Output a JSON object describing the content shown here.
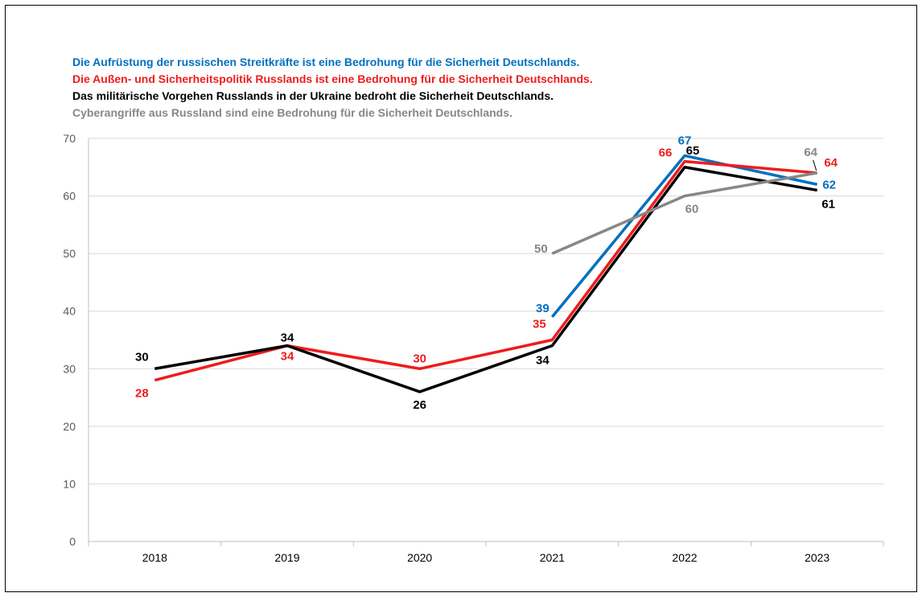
{
  "chart_data": {
    "type": "line",
    "categories": [
      "2018",
      "2019",
      "2020",
      "2021",
      "2022",
      "2023"
    ],
    "ylim": [
      0,
      70
    ],
    "yticks": [
      0,
      10,
      20,
      30,
      40,
      50,
      60,
      70
    ],
    "grid": true,
    "legend_placement": "top-left",
    "series": [
      {
        "name": "Die Aufrüstung der russischen Streitkräfte ist eine Bedrohung für die Sicherheit Deutschlands.",
        "color": "#0070c0",
        "values": [
          null,
          null,
          null,
          39,
          67,
          62
        ],
        "labels": [
          "",
          "",
          "",
          "39",
          "67",
          "62"
        ]
      },
      {
        "name": "Die Außen- und Sicherheitspolitik Russlands ist eine Bedrohung für die Sicherheit Deutschlands.",
        "color": "#ee1c1c",
        "values": [
          28,
          34,
          30,
          35,
          66,
          64
        ],
        "labels": [
          "28",
          "34",
          "30",
          "35",
          "66",
          "64"
        ]
      },
      {
        "name": "Das militärische Vorgehen Russlands in der Ukraine bedroht die Sicherheit Deutschlands.",
        "color": "#000000",
        "values": [
          30,
          34,
          26,
          34,
          65,
          61
        ],
        "labels": [
          "30",
          "34",
          "26",
          "34",
          "65",
          "61"
        ]
      },
      {
        "name": "Cyberangriffe aus Russland sind eine Bedrohung für die Sicherheit Deutschlands.",
        "color": "#878787",
        "values": [
          null,
          null,
          null,
          50,
          60,
          64
        ],
        "labels": [
          "",
          "",
          "",
          "50",
          "60",
          "64"
        ]
      }
    ]
  }
}
